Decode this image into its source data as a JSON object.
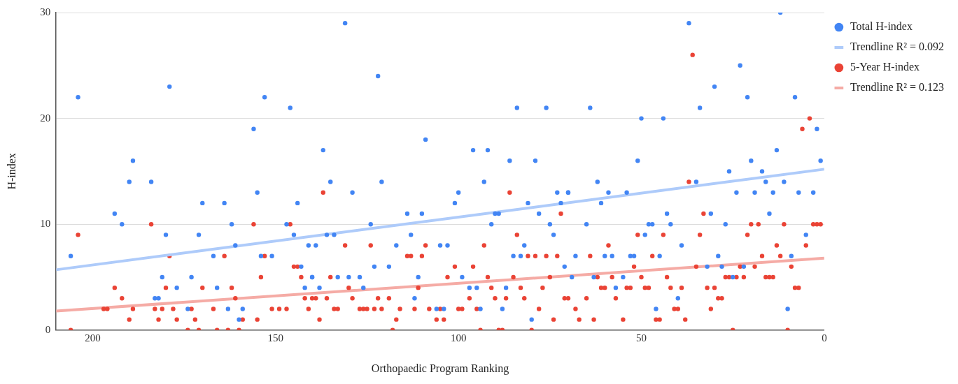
{
  "chart_data": {
    "type": "scatter",
    "xlabel": "Orthopaedic Program Ranking",
    "ylabel": "H-index",
    "xlim": [
      210,
      0
    ],
    "xticks": [
      200,
      150,
      100,
      50,
      0
    ],
    "ylim": [
      0,
      30
    ],
    "yticks": [
      0,
      10,
      20,
      30
    ],
    "grid": "y",
    "legend": "top right",
    "series": [
      {
        "name": "Total H-index",
        "type": "scatter",
        "marker": "circle",
        "color": "#4285f4",
        "x": [
          204,
          179,
          153,
          146,
          156,
          189,
          190,
          184,
          155,
          170,
          164,
          144,
          194,
          192,
          162,
          147,
          180,
          171,
          145,
          161,
          141,
          206,
          167,
          154,
          151,
          143,
          181,
          173,
          140,
          177,
          166,
          142,
          183,
          182,
          174,
          163,
          159,
          160,
          131,
          122,
          84,
          76,
          109,
          137,
          96,
          92,
          86,
          79,
          135,
          121,
          93,
          129,
          100,
          73,
          70,
          101,
          81,
          72,
          114,
          110,
          90,
          89,
          78,
          124,
          91,
          75,
          136,
          134,
          113,
          74,
          139,
          117,
          105,
          103,
          82,
          85,
          83,
          123,
          119,
          71,
          140,
          133,
          130,
          127,
          111,
          99,
          138,
          126,
          97,
          95,
          87,
          112,
          106,
          104,
          94,
          88,
          80,
          12,
          37,
          23,
          30,
          21,
          8,
          64,
          34,
          50,
          44,
          2,
          13,
          51,
          20,
          1,
          26,
          17,
          62,
          35,
          16,
          11,
          70,
          59,
          54,
          24,
          19,
          14,
          7,
          3,
          61,
          43,
          31,
          15,
          65,
          48,
          47,
          42,
          27,
          49,
          5,
          39,
          68,
          60,
          58,
          53,
          52,
          45,
          29,
          9,
          32,
          28,
          22,
          69,
          63,
          55,
          25,
          57,
          40,
          46,
          10
        ],
        "values": [
          22,
          23,
          22,
          21,
          19,
          16,
          14,
          14,
          13,
          12,
          12,
          12,
          11,
          10,
          10,
          10,
          9,
          9,
          9,
          8,
          8,
          7,
          7,
          7,
          7,
          6,
          5,
          5,
          5,
          4,
          4,
          4,
          3,
          3,
          2,
          2,
          2,
          1,
          29,
          24,
          21,
          21,
          18,
          17,
          17,
          17,
          16,
          16,
          14,
          14,
          14,
          13,
          13,
          13,
          13,
          12,
          12,
          12,
          11,
          11,
          11,
          11,
          11,
          10,
          10,
          10,
          9,
          9,
          9,
          9,
          8,
          8,
          8,
          8,
          8,
          7,
          7,
          6,
          6,
          6,
          5,
          5,
          5,
          5,
          5,
          5,
          4,
          4,
          4,
          4,
          4,
          3,
          2,
          2,
          2,
          2,
          1,
          30,
          29,
          25,
          23,
          22,
          22,
          21,
          21,
          20,
          20,
          19,
          17,
          16,
          16,
          16,
          15,
          15,
          14,
          14,
          14,
          14,
          13,
          13,
          13,
          13,
          13,
          13,
          13,
          13,
          12,
          11,
          11,
          11,
          10,
          10,
          10,
          10,
          10,
          9,
          9,
          8,
          7,
          7,
          7,
          7,
          7,
          7,
          7,
          7,
          6,
          6,
          6,
          5,
          5,
          5,
          5,
          4,
          3,
          2,
          2
        ]
      },
      {
        "name": "Trendline R² = 0.092",
        "type": "line",
        "marker": "none",
        "color": "#aecbfa",
        "x": [
          210,
          0
        ],
        "values": [
          5.7,
          15.2
        ]
      },
      {
        "name": "5-Year H-index",
        "type": "scatter",
        "marker": "circle",
        "color": "#ea4335",
        "x": [
          204,
          184,
          156,
          146,
          179,
          164,
          153,
          145,
          144,
          154,
          143,
          194,
          180,
          170,
          162,
          192,
          161,
          142,
          197,
          196,
          189,
          183,
          181,
          178,
          173,
          167,
          151,
          149,
          147,
          141,
          190,
          182,
          177,
          172,
          159,
          155,
          206,
          174,
          171,
          166,
          163,
          160,
          137,
          86,
          72,
          84,
          131,
          124,
          109,
          93,
          114,
          113,
          110,
          81,
          79,
          76,
          73,
          101,
          96,
          135,
          103,
          92,
          85,
          75,
          130,
          111,
          91,
          83,
          77,
          140,
          139,
          136,
          129,
          122,
          119,
          97,
          90,
          87,
          82,
          71,
          134,
          133,
          127,
          126,
          125,
          123,
          121,
          116,
          112,
          108,
          105,
          100,
          99,
          95,
          78,
          138,
          117,
          106,
          104,
          74,
          118,
          94,
          89,
          88,
          80,
          36,
          4,
          6,
          37,
          33,
          20,
          18,
          11,
          3,
          2,
          1,
          51,
          44,
          34,
          21,
          59,
          13,
          5,
          64,
          47,
          17,
          12,
          52,
          35,
          23,
          19,
          9,
          62,
          58,
          50,
          43,
          27,
          26,
          24,
          22,
          16,
          15,
          14,
          61,
          60,
          54,
          53,
          49,
          48,
          42,
          39,
          32,
          30,
          8,
          7,
          70,
          65,
          57,
          29,
          28,
          68,
          41,
          40,
          31,
          67,
          63,
          55,
          46,
          45,
          38,
          25,
          10
        ],
        "values": [
          9,
          10,
          10,
          10,
          7,
          7,
          7,
          6,
          6,
          5,
          5,
          4,
          4,
          4,
          4,
          3,
          3,
          3,
          2,
          2,
          2,
          2,
          2,
          2,
          2,
          2,
          2,
          2,
          2,
          2,
          1,
          1,
          1,
          1,
          1,
          1,
          0,
          0,
          0,
          0,
          0,
          0,
          13,
          13,
          11,
          9,
          8,
          8,
          8,
          8,
          7,
          7,
          7,
          7,
          7,
          7,
          7,
          6,
          6,
          5,
          5,
          5,
          5,
          5,
          4,
          4,
          4,
          4,
          4,
          3,
          3,
          3,
          3,
          3,
          3,
          3,
          3,
          3,
          3,
          3,
          2,
          2,
          2,
          2,
          2,
          2,
          2,
          2,
          2,
          2,
          2,
          2,
          2,
          2,
          2,
          1,
          1,
          1,
          1,
          1,
          0,
          0,
          0,
          0,
          0,
          26,
          20,
          19,
          14,
          11,
          10,
          10,
          10,
          10,
          10,
          10,
          9,
          9,
          9,
          9,
          8,
          8,
          8,
          7,
          7,
          7,
          7,
          6,
          6,
          6,
          6,
          6,
          5,
          5,
          5,
          5,
          5,
          5,
          5,
          5,
          5,
          5,
          5,
          4,
          4,
          4,
          4,
          4,
          4,
          4,
          4,
          4,
          4,
          4,
          4,
          3,
          3,
          3,
          3,
          3,
          2,
          2,
          2,
          2,
          1,
          1,
          1,
          1,
          1,
          1,
          0,
          0
        ]
      },
      {
        "name": "Trendline R² = 0.123",
        "type": "line",
        "marker": "none",
        "color": "#f5aba5",
        "x": [
          210,
          0
        ],
        "values": [
          1.8,
          6.8
        ]
      }
    ]
  }
}
